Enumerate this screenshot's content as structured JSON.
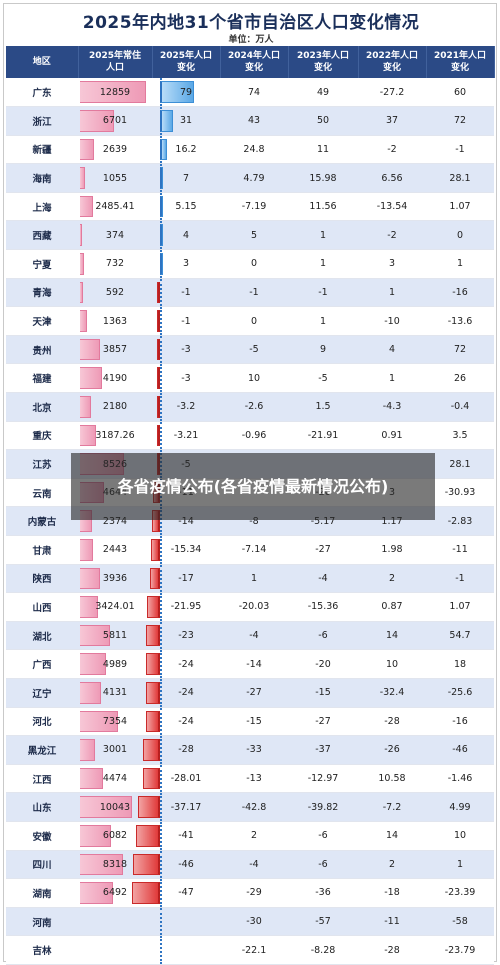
{
  "title": "2025年内地31个省市自治区人口变化情况",
  "unit": "单位：万人",
  "headers": [
    "地区",
    "2025年常住\n人口",
    "2025年人口\n变化",
    "2024年人口\n变化",
    "2023年人口\n变化",
    "2022年人口\n变化",
    "2021年人口\n变化"
  ],
  "rows": [
    {
      "region": "广东",
      "pop": "12859",
      "c25": "79",
      "c24": "74",
      "c23": "49",
      "c22": "-27.2",
      "c21": "60"
    },
    {
      "region": "浙江",
      "pop": "6701",
      "c25": "31",
      "c24": "43",
      "c23": "50",
      "c22": "37",
      "c21": "72"
    },
    {
      "region": "新疆",
      "pop": "2639",
      "c25": "16.2",
      "c24": "24.8",
      "c23": "11",
      "c22": "-2",
      "c21": "-1"
    },
    {
      "region": "海南",
      "pop": "1055",
      "c25": "7",
      "c24": "4.79",
      "c23": "15.98",
      "c22": "6.56",
      "c21": "28.1"
    },
    {
      "region": "上海",
      "pop": "2485.41",
      "c25": "5.15",
      "c24": "-7.19",
      "c23": "11.56",
      "c22": "-13.54",
      "c21": "1.07"
    },
    {
      "region": "西藏",
      "pop": "374",
      "c25": "4",
      "c24": "5",
      "c23": "1",
      "c22": "-2",
      "c21": "0"
    },
    {
      "region": "宁夏",
      "pop": "732",
      "c25": "3",
      "c24": "0",
      "c23": "1",
      "c22": "3",
      "c21": "1"
    },
    {
      "region": "青海",
      "pop": "592",
      "c25": "-1",
      "c24": "-1",
      "c23": "-1",
      "c22": "1",
      "c21": "-16"
    },
    {
      "region": "天津",
      "pop": "1363",
      "c25": "-1",
      "c24": "0",
      "c23": "1",
      "c22": "-10",
      "c21": "-13.6"
    },
    {
      "region": "贵州",
      "pop": "3857",
      "c25": "-3",
      "c24": "-5",
      "c23": "9",
      "c22": "4",
      "c21": "72"
    },
    {
      "region": "福建",
      "pop": "4190",
      "c25": "-3",
      "c24": "10",
      "c23": "-5",
      "c22": "1",
      "c21": "26"
    },
    {
      "region": "北京",
      "pop": "2180",
      "c25": "-3.2",
      "c24": "-2.6",
      "c23": "1.5",
      "c22": "-4.3",
      "c21": "-0.4"
    },
    {
      "region": "重庆",
      "pop": "3187.26",
      "c25": "-3.21",
      "c24": "-0.96",
      "c23": "-21.91",
      "c22": "0.91",
      "c21": "3.5"
    },
    {
      "region": "江苏",
      "pop": "8526",
      "c25": "-5",
      "c24": "",
      "c23": "",
      "c22": "",
      "c21": "28.1"
    },
    {
      "region": "云南",
      "pop": "4644",
      "c25": "-11",
      "c24": "",
      "c23": "-20",
      "c22": "3",
      "c21": "-30.93"
    },
    {
      "region": "内蒙古",
      "pop": "2374",
      "c25": "-14",
      "c24": "-8",
      "c23": "-5.17",
      "c22": "1.17",
      "c21": "-2.83"
    },
    {
      "region": "甘肃",
      "pop": "2443",
      "c25": "-15.34",
      "c24": "-7.14",
      "c23": "-27",
      "c22": "1.98",
      "c21": "-11"
    },
    {
      "region": "陕西",
      "pop": "3936",
      "c25": "-17",
      "c24": "1",
      "c23": "-4",
      "c22": "2",
      "c21": "-1"
    },
    {
      "region": "山西",
      "pop": "3424.01",
      "c25": "-21.95",
      "c24": "-20.03",
      "c23": "-15.36",
      "c22": "0.87",
      "c21": "1.07"
    },
    {
      "region": "湖北",
      "pop": "5811",
      "c25": "-23",
      "c24": "-4",
      "c23": "-6",
      "c22": "14",
      "c21": "54.7"
    },
    {
      "region": "广西",
      "pop": "4989",
      "c25": "-24",
      "c24": "-14",
      "c23": "-20",
      "c22": "10",
      "c21": "18"
    },
    {
      "region": "辽宁",
      "pop": "4131",
      "c25": "-24",
      "c24": "-27",
      "c23": "-15",
      "c22": "-32.4",
      "c21": "-25.6"
    },
    {
      "region": "河北",
      "pop": "7354",
      "c25": "-24",
      "c24": "-15",
      "c23": "-27",
      "c22": "-28",
      "c21": "-16"
    },
    {
      "region": "黑龙江",
      "pop": "3001",
      "c25": "-28",
      "c24": "-33",
      "c23": "-37",
      "c22": "-26",
      "c21": "-46"
    },
    {
      "region": "江西",
      "pop": "4474",
      "c25": "-28.01",
      "c24": "-13",
      "c23": "-12.97",
      "c22": "10.58",
      "c21": "-1.46"
    },
    {
      "region": "山东",
      "pop": "10043",
      "c25": "-37.17",
      "c24": "-42.8",
      "c23": "-39.82",
      "c22": "-7.2",
      "c21": "4.99"
    },
    {
      "region": "安徽",
      "pop": "6082",
      "c25": "-41",
      "c24": "2",
      "c23": "-6",
      "c22": "14",
      "c21": "10"
    },
    {
      "region": "四川",
      "pop": "8318",
      "c25": "-46",
      "c24": "-4",
      "c23": "-6",
      "c22": "2",
      "c21": "1"
    },
    {
      "region": "湖南",
      "pop": "6492",
      "c25": "-47",
      "c24": "-29",
      "c23": "-36",
      "c22": "-18",
      "c21": "-23.39"
    },
    {
      "region": "河南",
      "pop": "",
      "c25": "",
      "c24": "-30",
      "c23": "-57",
      "c22": "-11",
      "c21": "-58"
    },
    {
      "region": "吉林",
      "pop": "",
      "c25": "",
      "c24": "-22.1",
      "c23": "-8.28",
      "c22": "-28",
      "c21": "-23.79"
    }
  ],
  "overlay_text": "各省疫情公布(各省疫情最新情况公布)",
  "colors": {
    "header_bg": "#2b4a86",
    "pop_bar": "#ee9ab6",
    "pos_bar": "#5aa8e6",
    "neg_bar": "#e03a3a",
    "stripe": "#dfe7f6"
  }
}
